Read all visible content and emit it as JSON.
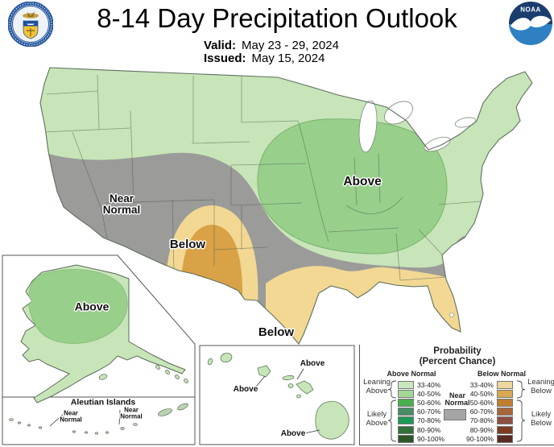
{
  "header": {
    "title": "8-14 Day Precipitation Outlook",
    "valid_label": "Valid:",
    "valid_value": "May 23 - 29, 2024",
    "issued_label": "Issued:",
    "issued_value": "May 15, 2024",
    "noaa_text": "NOAA"
  },
  "map": {
    "labels": {
      "near_normal": "Near Normal",
      "below_southwest": "Below",
      "above_midwest": "Above",
      "below_gulf": "Below"
    },
    "colors": {
      "light_green": "#c7e5b8",
      "medium_green": "#98cf8b",
      "gray": "#9b9b99",
      "tan": "#f2d892",
      "orange": "#d9a246",
      "outline": "#5f6f5f",
      "noaa_dark_blue": "#1b3d6e",
      "noaa_light_blue": "#2f80c3",
      "doc_blue": "#2a5ba0",
      "doc_gold": "#f2c431"
    }
  },
  "alaska_inset": {
    "above_label": "Above",
    "aleutian_title": "Aleutian Islands",
    "near_normal_left": "Near Normal",
    "near_normal_right": "Near Normal"
  },
  "hawaii_inset": {
    "above_labels": [
      "Above",
      "Above",
      "Above"
    ]
  },
  "legend": {
    "title": "Probability",
    "subtitle": "(Percent Chance)",
    "above_header": "Above Normal",
    "below_header": "Below Normal",
    "near_normal": "Near Normal",
    "leaning_above": "Leaning Above",
    "likely_above": "Likely Above",
    "leaning_below": "Leaning Below",
    "likely_below": "Likely Below",
    "ranges": [
      "33-40%",
      "40-50%",
      "50-60%",
      "60-70%",
      "70-80%",
      "80-90%",
      "90-100%"
    ],
    "above_colors": [
      "#c9e7bd",
      "#a3d795",
      "#4aae4f",
      "#478e63",
      "#1d9a55",
      "#33703a",
      "#2c5628"
    ],
    "below_colors": [
      "#eed79c",
      "#d9a84e",
      "#c07d2d",
      "#a8653c",
      "#8f4f41",
      "#7c3d22",
      "#5a2b20"
    ],
    "near_normal_color": "#a5a5a3"
  },
  "map_data": {
    "type": "probability-outlook-choropleth",
    "valid_period": "May 23 - 29, 2024",
    "issued": "May 15, 2024",
    "regions": [
      {
        "category": "Near Normal",
        "area": "Southwestern US from California through west Texas"
      },
      {
        "category": "Below",
        "area": "Arizona / New Mexico border region",
        "levels": [
          "33-40%",
          "40-50%"
        ]
      },
      {
        "category": "Above",
        "area": "Midwest and Ohio Valley",
        "levels": [
          "33-40%",
          "40-50%"
        ]
      },
      {
        "category": "Below",
        "area": "Gulf Coast and Florida",
        "levels": [
          "33-40%"
        ]
      },
      {
        "category": "Near Normal",
        "area": "Southeast coastal strip"
      },
      {
        "category": "Above",
        "area": "Alaska mainland",
        "levels": [
          "33-40%",
          "40-50%"
        ]
      },
      {
        "category": "Near Normal",
        "area": "Aleutian Islands"
      },
      {
        "category": "Above",
        "area": "Hawaiian Islands",
        "levels": [
          "33-40%"
        ]
      }
    ]
  }
}
